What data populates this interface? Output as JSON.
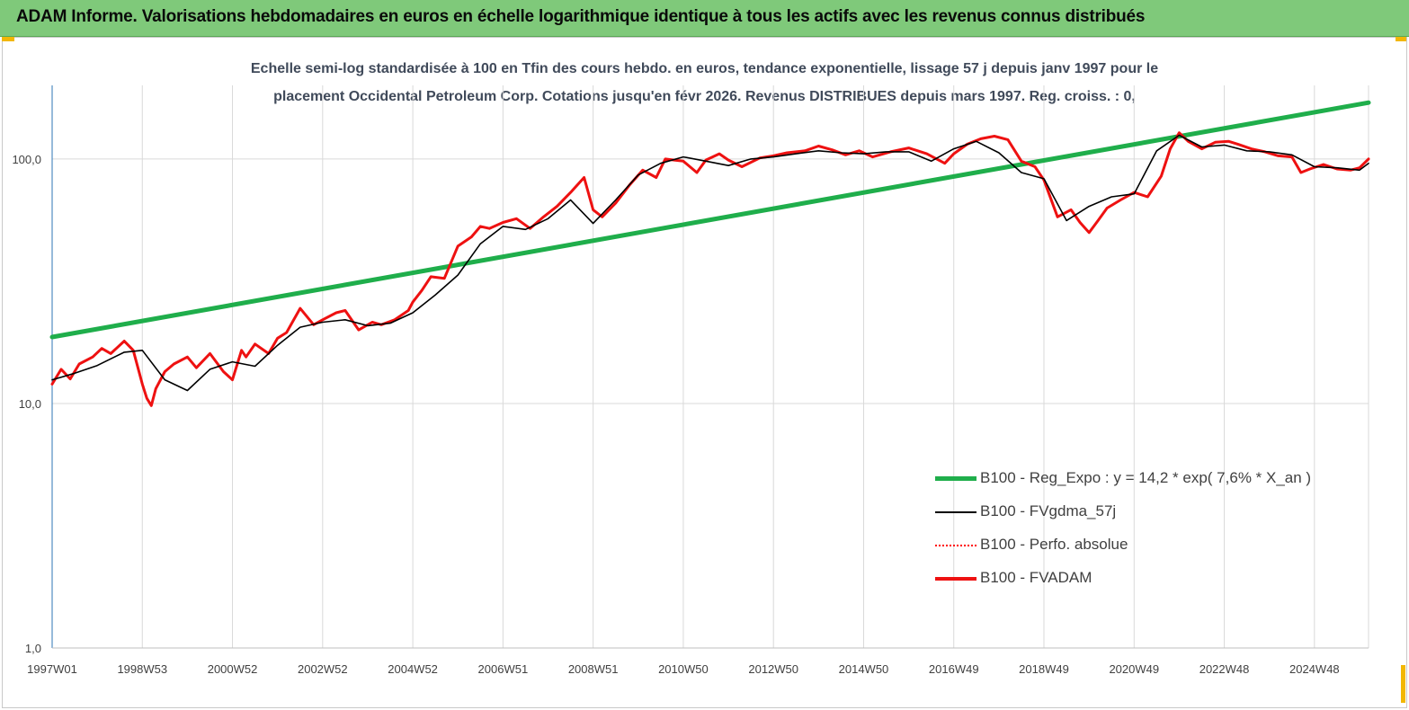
{
  "banner": {
    "title": "ADAM Informe. Valorisations hebdomadaires en euros en échelle logarithmique identique à tous les actifs avec les revenus connus distribués"
  },
  "colors": {
    "banner_bg": "#7fc97a",
    "regression": "#1fae4b",
    "smoothed": "#000000",
    "perf": "#ff0000",
    "fvadam": "#ee1111",
    "corner_accent": "#f2b705"
  },
  "chart_data": {
    "type": "line",
    "title": "Echelle semi-log standardisée à 100 en Tfin des cours hebdo. en euros, tendance exponentielle, lissage 57 j depuis janv 1997 pour le",
    "subtitle": "placement Occidental Petroleum Corp. Cotations jusqu'en févr 2026. Revenus DISTRIBUES depuis mars 1997.  Reg. croiss. : 0,",
    "y_scale": "log",
    "ylim": [
      1,
      200
    ],
    "xlim": [
      1997.0,
      2026.2
    ],
    "y_ticks": [
      1,
      10,
      100
    ],
    "y_tick_labels": [
      "1,0",
      "10,0",
      "100,0"
    ],
    "x_tick_labels": [
      "1997W01",
      "1998W53",
      "2000W52",
      "2002W52",
      "2004W52",
      "2006W51",
      "2008W51",
      "2010W50",
      "2012W50",
      "2014W50",
      "2016W49",
      "2018W49",
      "2020W49",
      "2022W48",
      "2024W48"
    ],
    "x_tick_years": [
      1997.0,
      1999.0,
      2001.0,
      2003.0,
      2005.0,
      2007.0,
      2009.0,
      2011.0,
      2013.0,
      2015.0,
      2017.0,
      2019.0,
      2021.0,
      2023.0,
      2025.0
    ],
    "grid": "vertical",
    "legend_position": "bottom-right",
    "series": [
      {
        "name": "B100 - Reg_Expo : y = 14,2 *  exp( 7,6% *  X_an )",
        "style": "thick-green",
        "x": [
          1997.0,
          2026.2
        ],
        "values": [
          18.7,
          170
        ]
      },
      {
        "name": "B100 - FVgdma_57j",
        "style": "thin-black",
        "x": [
          1997.0,
          1997.5,
          1998.0,
          1998.6,
          1999.0,
          1999.5,
          2000.0,
          2000.5,
          2001.0,
          2001.5,
          2002.0,
          2002.5,
          2003.0,
          2003.5,
          2004.0,
          2004.5,
          2005.0,
          2005.5,
          2006.0,
          2006.5,
          2007.0,
          2007.5,
          2008.0,
          2008.5,
          2009.0,
          2009.5,
          2010.0,
          2010.5,
          2011.0,
          2011.5,
          2012.0,
          2012.5,
          2013.0,
          2013.5,
          2014.0,
          2014.5,
          2015.0,
          2015.5,
          2016.0,
          2016.5,
          2017.0,
          2017.5,
          2018.0,
          2018.5,
          2019.0,
          2019.5,
          2020.0,
          2020.5,
          2021.0,
          2021.5,
          2022.0,
          2022.5,
          2023.0,
          2023.5,
          2024.0,
          2024.5,
          2025.0,
          2025.5,
          2026.0,
          2026.2
        ],
        "values": [
          12.5,
          13.3,
          14.3,
          16.2,
          16.5,
          12.5,
          11.3,
          13.8,
          14.8,
          14.2,
          17.3,
          20.5,
          21.5,
          22.0,
          20.8,
          21.3,
          23.5,
          27.8,
          33.5,
          45.0,
          53.0,
          51.5,
          57.0,
          68.0,
          54.5,
          68.0,
          86.0,
          96.0,
          102.0,
          98.0,
          94.0,
          100.0,
          102.0,
          105.0,
          108.0,
          106.0,
          105.0,
          107.0,
          107.0,
          98.0,
          110.0,
          118.0,
          106.0,
          88.0,
          83.0,
          56.0,
          64.0,
          70.0,
          72.0,
          108.0,
          125.0,
          112.0,
          114.0,
          108.0,
          107.0,
          104.0,
          93.0,
          92.0,
          90.0,
          96.0
        ]
      },
      {
        "name": "B100 - Perfo. absolue",
        "style": "dotted-red",
        "x": [],
        "values": []
      },
      {
        "name": "B100 - FVADAM",
        "style": "thick-red",
        "x": [
          1997.0,
          1997.2,
          1997.4,
          1997.6,
          1997.9,
          1998.1,
          1998.3,
          1998.6,
          1998.8,
          1999.0,
          1999.1,
          1999.2,
          1999.3,
          1999.5,
          1999.7,
          2000.0,
          2000.2,
          2000.5,
          2000.8,
          2001.0,
          2001.2,
          2001.3,
          2001.5,
          2001.8,
          2002.0,
          2002.2,
          2002.5,
          2002.8,
          2003.0,
          2003.3,
          2003.5,
          2003.8,
          2004.1,
          2004.3,
          2004.6,
          2004.9,
          2005.0,
          2005.2,
          2005.4,
          2005.7,
          2006.0,
          2006.3,
          2006.5,
          2006.7,
          2007.0,
          2007.3,
          2007.6,
          2007.9,
          2008.2,
          2008.5,
          2008.8,
          2009.0,
          2009.2,
          2009.5,
          2009.8,
          2010.1,
          2010.4,
          2010.6,
          2010.8,
          2011.0,
          2011.3,
          2011.5,
          2011.8,
          2012.0,
          2012.3,
          2012.7,
          2013.0,
          2013.3,
          2013.7,
          2014.0,
          2014.3,
          2014.6,
          2014.9,
          2015.2,
          2015.6,
          2016.0,
          2016.4,
          2016.8,
          2017.0,
          2017.3,
          2017.6,
          2017.9,
          2018.2,
          2018.5,
          2018.8,
          2019.0,
          2019.3,
          2019.6,
          2019.8,
          2020.0,
          2020.2,
          2020.4,
          2020.7,
          2021.0,
          2021.3,
          2021.6,
          2021.8,
          2022.0,
          2022.2,
          2022.5,
          2022.8,
          2023.1,
          2023.3,
          2023.6,
          2023.9,
          2024.2,
          2024.5,
          2024.7,
          2024.9,
          2025.2,
          2025.5,
          2025.8,
          2026.0,
          2026.2
        ],
        "values": [
          12.0,
          13.8,
          12.6,
          14.5,
          15.5,
          16.8,
          16.0,
          18.0,
          16.5,
          12.0,
          10.5,
          9.8,
          11.5,
          13.5,
          14.5,
          15.5,
          14.0,
          16.0,
          13.5,
          12.5,
          16.5,
          15.5,
          17.5,
          16.0,
          18.5,
          19.5,
          24.5,
          21.0,
          22.0,
          23.5,
          24.0,
          20.0,
          21.5,
          21.0,
          22.0,
          24.0,
          26.0,
          29.0,
          33.0,
          32.5,
          44.0,
          48.0,
          53.0,
          52.0,
          55.0,
          57.0,
          52.0,
          58.0,
          64.0,
          73.0,
          84.0,
          62.0,
          58.0,
          66.0,
          78.0,
          90.0,
          84.0,
          100.0,
          99.0,
          98.0,
          88.0,
          99.0,
          105.0,
          99.0,
          93.0,
          101.0,
          103.0,
          106.0,
          108.0,
          113.0,
          109.0,
          104.0,
          108.0,
          102.0,
          107.0,
          111.0,
          105.0,
          96.0,
          105.0,
          115.0,
          121.0,
          124.0,
          120.0,
          98.0,
          93.0,
          82.0,
          58.0,
          62.0,
          55.0,
          50.0,
          56.0,
          63.0,
          68.0,
          73.0,
          70.0,
          85.0,
          110.0,
          128.0,
          118.0,
          110.0,
          117.0,
          118.0,
          115.0,
          110.0,
          107.0,
          103.0,
          102.0,
          88.0,
          91.0,
          95.0,
          91.0,
          90.0,
          92.0,
          100.0
        ]
      }
    ]
  }
}
